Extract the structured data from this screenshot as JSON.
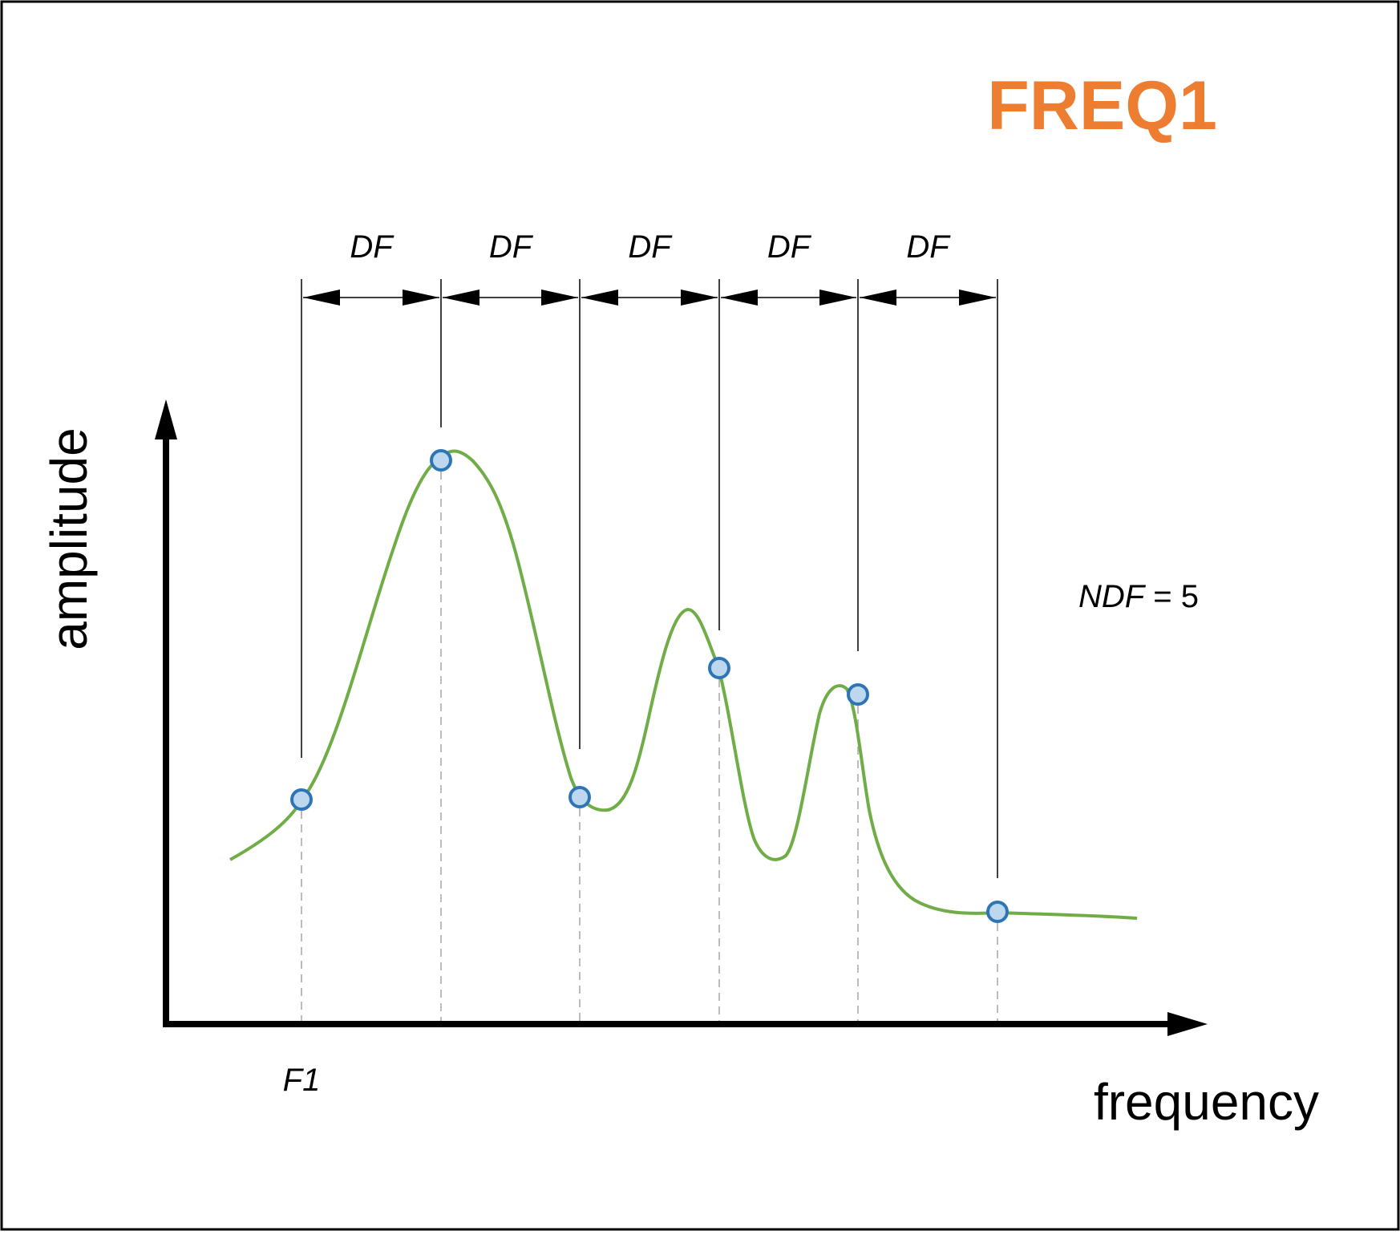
{
  "title": "FREQ1",
  "colors": {
    "title": "#ED7D31",
    "curve": "#70AD47",
    "marker_fill": "#BDD7EE",
    "marker_stroke": "#2E75B6",
    "guide": "#A6A6A6",
    "ink": "#000000"
  },
  "axes": {
    "x_label": "frequency",
    "y_label": "amplitude"
  },
  "start_label": "F1",
  "step_label": "DF",
  "step_labels": [
    "DF",
    "DF",
    "DF",
    "DF",
    "DF"
  ],
  "ndf": {
    "name": "NDF",
    "equals": " = ",
    "value": "5"
  },
  "sample_points": 6
}
